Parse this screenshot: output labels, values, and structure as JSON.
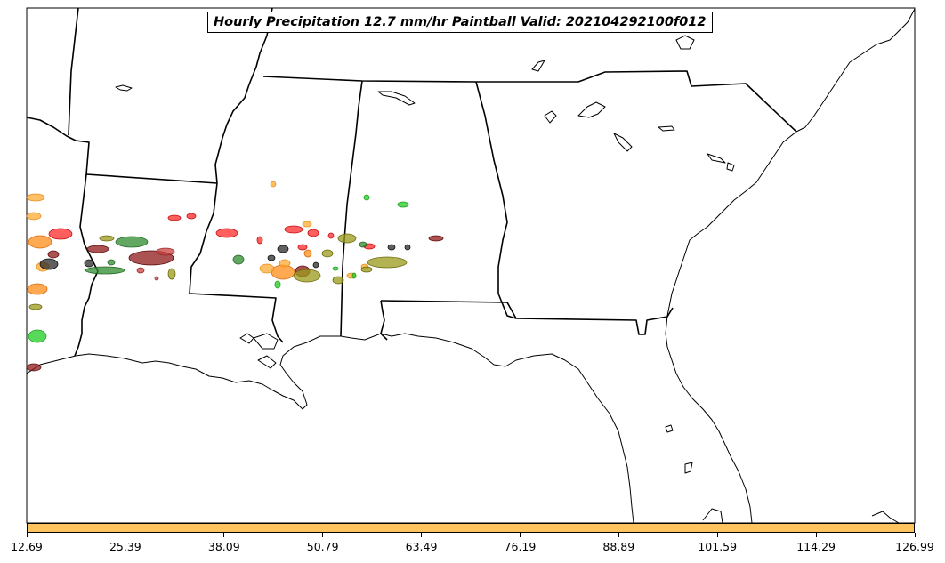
{
  "title": "Hourly Precipitation 12.7 mm/hr Paintball Valid: 202104292100f012",
  "colorbar": {
    "color": "#ffc460",
    "ticks": [
      "12.69",
      "25.39",
      "38.09",
      "50.79",
      "63.49",
      "76.19",
      "88.89",
      "101.59",
      "114.29",
      "126.99"
    ]
  },
  "member_colors": [
    "#ff2a2a",
    "#ff8c1a",
    "#ffaa33",
    "#2e8b2e",
    "#8f1a1a",
    "#2b2b2b",
    "#22cc22",
    "#9a9a1a",
    "#cc4040"
  ]
}
